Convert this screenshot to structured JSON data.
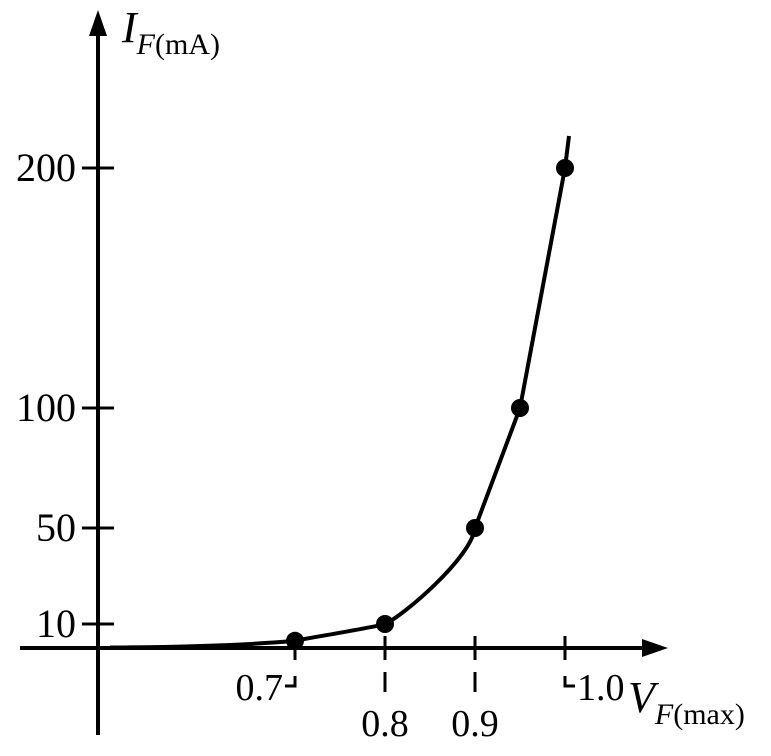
{
  "chart_data": {
    "type": "line",
    "x": [
      0.7,
      0.8,
      0.9,
      0.95,
      1.0
    ],
    "series": [
      {
        "values": [
          3,
          10,
          50,
          100,
          200
        ]
      }
    ],
    "xticks": [
      {
        "value": 0.7,
        "label": "0.7"
      },
      {
        "value": 0.8,
        "label": "0.8"
      },
      {
        "value": 0.9,
        "label": "0.9"
      },
      {
        "value": 1.0,
        "label": "1.0"
      }
    ],
    "yticks": [
      {
        "value": 10,
        "label": "10"
      },
      {
        "value": 50,
        "label": "50"
      },
      {
        "value": 100,
        "label": "100"
      },
      {
        "value": 200,
        "label": "200"
      }
    ],
    "ylabel": {
      "main": "I",
      "sub": "F",
      "unit": "(mA)"
    },
    "xlabel": {
      "main": "V",
      "sub": "F",
      "unit": "(max)"
    },
    "grid": false,
    "legend": "none"
  }
}
